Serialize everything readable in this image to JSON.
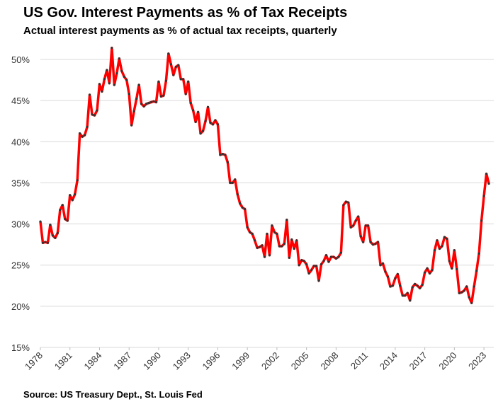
{
  "chart_data": {
    "type": "line",
    "title": "US Gov. Interest Payments as % of Tax Receipts",
    "subtitle": "Actual interest payments as % of actual tax receipts, quarterly",
    "source": "Source: US Treasury Dept., St. Louis Fed",
    "x": [
      1978,
      1978.25,
      1978.5,
      1978.75,
      1979,
      1979.25,
      1979.5,
      1979.75,
      1980,
      1980.25,
      1980.5,
      1980.75,
      1981,
      1981.25,
      1981.5,
      1981.75,
      1982,
      1982.25,
      1982.5,
      1982.75,
      1983,
      1983.25,
      1983.5,
      1983.75,
      1984,
      1984.25,
      1984.5,
      1984.75,
      1985,
      1985.25,
      1985.5,
      1985.75,
      1986,
      1986.25,
      1986.5,
      1986.75,
      1987,
      1987.25,
      1987.5,
      1987.75,
      1988,
      1988.25,
      1988.5,
      1988.75,
      1989,
      1989.25,
      1989.5,
      1989.75,
      1990,
      1990.25,
      1990.5,
      1990.75,
      1991,
      1991.25,
      1991.5,
      1991.75,
      1992,
      1992.25,
      1992.5,
      1992.75,
      1993,
      1993.25,
      1993.5,
      1993.75,
      1994,
      1994.25,
      1994.5,
      1994.75,
      1995,
      1995.25,
      1995.5,
      1995.75,
      1996,
      1996.25,
      1996.5,
      1996.75,
      1997,
      1997.25,
      1997.5,
      1997.75,
      1998,
      1998.25,
      1998.5,
      1998.75,
      1999,
      1999.25,
      1999.5,
      1999.75,
      2000,
      2000.25,
      2000.5,
      2000.75,
      2001,
      2001.25,
      2001.5,
      2001.75,
      2002,
      2002.25,
      2002.5,
      2002.75,
      2003,
      2003.25,
      2003.5,
      2003.75,
      2004,
      2004.25,
      2004.5,
      2004.75,
      2005,
      2005.25,
      2005.5,
      2005.75,
      2006,
      2006.25,
      2006.5,
      2006.75,
      2007,
      2007.25,
      2007.5,
      2007.75,
      2008,
      2008.25,
      2008.5,
      2008.75,
      2009,
      2009.25,
      2009.5,
      2009.75,
      2010,
      2010.25,
      2010.5,
      2010.75,
      2011,
      2011.25,
      2011.5,
      2011.75,
      2012,
      2012.25,
      2012.5,
      2012.75,
      2013,
      2013.25,
      2013.5,
      2013.75,
      2014,
      2014.25,
      2014.5,
      2014.75,
      2015,
      2015.25,
      2015.5,
      2015.75,
      2016,
      2016.25,
      2016.5,
      2016.75,
      2017,
      2017.25,
      2017.5,
      2017.75,
      2018,
      2018.25,
      2018.5,
      2018.75,
      2019,
      2019.25,
      2019.5,
      2019.75,
      2020,
      2020.25,
      2020.5,
      2020.75,
      2021,
      2021.25,
      2021.5,
      2021.75,
      2022,
      2022.25,
      2022.5,
      2022.75,
      2023,
      2023.25,
      2023.5
    ],
    "series": [
      {
        "color": "#ff0000",
        "marker_color": "#333333",
        "values": [
          30.3,
          27.7,
          27.8,
          27.7,
          29.9,
          28.6,
          28.3,
          28.9,
          31.7,
          32.3,
          30.6,
          30.4,
          33.5,
          32.9,
          33.6,
          35.3,
          41.0,
          40.6,
          40.8,
          41.8,
          45.7,
          43.3,
          43.2,
          43.8,
          47.0,
          46.1,
          47.6,
          48.7,
          47.1,
          51.4,
          46.9,
          48.3,
          50.1,
          48.6,
          47.9,
          47.5,
          45.8,
          42.0,
          43.7,
          45.2,
          46.9,
          44.6,
          44.3,
          44.6,
          44.7,
          44.8,
          44.9,
          44.8,
          47.3,
          45.5,
          45.6,
          47.4,
          50.7,
          49.4,
          48.1,
          49.1,
          49.3,
          47.6,
          47.6,
          45.8,
          47.3,
          44.7,
          43.8,
          42.4,
          43.6,
          41.0,
          41.3,
          42.5,
          44.2,
          42.3,
          42.1,
          42.6,
          42.1,
          38.4,
          38.5,
          38.4,
          37.5,
          35.0,
          35.0,
          35.4,
          33.6,
          32.5,
          32.0,
          31.8,
          29.6,
          29.0,
          28.8,
          28.0,
          27.1,
          27.2,
          27.4,
          26.0,
          28.8,
          26.2,
          29.8,
          29.0,
          28.8,
          27.3,
          27.3,
          27.6,
          30.5,
          25.9,
          28.1,
          27.0,
          28.0,
          25.0,
          25.6,
          25.5,
          25.1,
          24.0,
          24.4,
          24.9,
          24.9,
          23.1,
          25.1,
          25.5,
          26.2,
          25.4,
          26.0,
          26.0,
          25.8,
          26.0,
          26.5,
          32.3,
          32.7,
          32.6,
          29.6,
          29.8,
          30.4,
          30.9,
          28.5,
          27.8,
          29.8,
          29.8,
          27.8,
          27.5,
          27.6,
          27.8,
          25.0,
          25.2,
          24.2,
          23.6,
          22.4,
          22.5,
          23.4,
          23.9,
          22.5,
          21.3,
          21.3,
          21.6,
          20.7,
          22.3,
          22.7,
          22.5,
          22.2,
          22.6,
          24.1,
          24.6,
          24.0,
          24.4,
          26.8,
          28.0,
          27.0,
          27.3,
          28.4,
          28.2,
          25.5,
          24.6,
          26.8,
          24.5,
          21.6,
          21.7,
          21.9,
          22.4,
          21.1,
          20.4,
          22.4,
          24.3,
          26.4,
          30.4,
          33.4,
          36.1,
          34.9
        ]
      }
    ],
    "xlim": [
      1978,
      2024
    ],
    "xticks": [
      1978,
      1981,
      1984,
      1987,
      1990,
      1993,
      1996,
      1999,
      2002,
      2005,
      2008,
      2011,
      2014,
      2017,
      2020,
      2023
    ],
    "ylim": [
      15,
      52
    ],
    "yticks": [
      {
        "value": 15,
        "label": "15%"
      },
      {
        "value": 20,
        "label": "20%"
      },
      {
        "value": 25,
        "label": "25%"
      },
      {
        "value": 30,
        "label": "30%"
      },
      {
        "value": 35,
        "label": "35%"
      },
      {
        "value": 40,
        "label": "40%"
      },
      {
        "value": 45,
        "label": "45%"
      },
      {
        "value": 50,
        "label": "50%"
      }
    ],
    "grid": true
  }
}
